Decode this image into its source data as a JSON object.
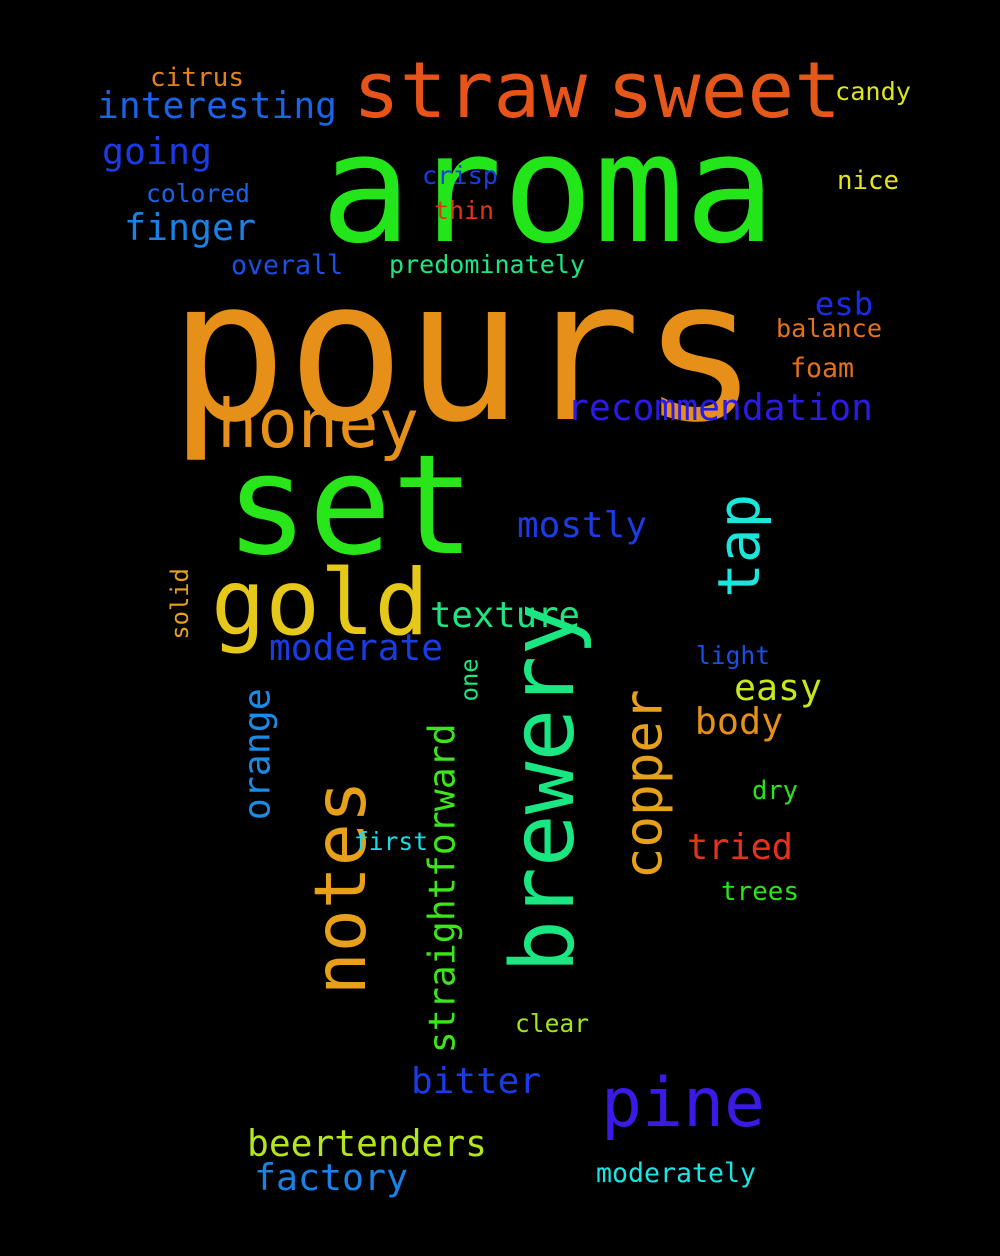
{
  "words": [
    {
      "text": "aroma",
      "color": "#22e61a"
    },
    {
      "text": "pours",
      "color": "#e6901a"
    },
    {
      "text": "brewery",
      "color": "#1ae682"
    },
    {
      "text": "notes",
      "color": "#e6a01a"
    },
    {
      "text": "copper",
      "color": "#e6a01a"
    },
    {
      "text": "set",
      "color": "#28e61a"
    },
    {
      "text": "tap",
      "color": "#1ae6dc"
    },
    {
      "text": "straw",
      "color": "#e6541a"
    },
    {
      "text": "sweet",
      "color": "#e6581a"
    },
    {
      "text": "gold",
      "color": "#e6c81a"
    },
    {
      "text": "honey",
      "color": "#e6901a"
    },
    {
      "text": "pine",
      "color": "#3c1ae6"
    },
    {
      "text": "interesting",
      "color": "#1a64e6"
    },
    {
      "text": "recommendation",
      "color": "#2c1ae6"
    },
    {
      "text": "going",
      "color": "#1a3ce6"
    },
    {
      "text": "finger",
      "color": "#1a82e6"
    },
    {
      "text": "mostly",
      "color": "#1a3ce6"
    },
    {
      "text": "texture",
      "color": "#1ae682"
    },
    {
      "text": "moderate",
      "color": "#1a3ce6"
    },
    {
      "text": "esb",
      "color": "#1a2ce6"
    },
    {
      "text": "orange",
      "color": "#1a8ce6"
    },
    {
      "text": "straightforward",
      "color": "#3ce61a"
    },
    {
      "text": "body",
      "color": "#e6901a"
    },
    {
      "text": "easy",
      "color": "#c8e61a"
    },
    {
      "text": "tried",
      "color": "#e6321a"
    },
    {
      "text": "bitter",
      "color": "#1a3ce6"
    },
    {
      "text": "beertenders",
      "color": "#b4e61a"
    },
    {
      "text": "factory",
      "color": "#1a82e6"
    },
    {
      "text": "citrus",
      "color": "#e6821a"
    },
    {
      "text": "candy",
      "color": "#dce61a"
    },
    {
      "text": "colored",
      "color": "#1a64e6"
    },
    {
      "text": "crisp",
      "color": "#1a3ce6"
    },
    {
      "text": "nice",
      "color": "#e6e61a"
    },
    {
      "text": "thin",
      "color": "#e6321a"
    },
    {
      "text": "overall",
      "color": "#1a50e6"
    },
    {
      "text": "predominately",
      "color": "#1ae682"
    },
    {
      "text": "balance",
      "color": "#e6721a"
    },
    {
      "text": "foam",
      "color": "#e6721a"
    },
    {
      "text": "solid",
      "color": "#e6a01a"
    },
    {
      "text": "light",
      "color": "#1a50e6"
    },
    {
      "text": "one",
      "color": "#1ae682"
    },
    {
      "text": "dry",
      "color": "#28e61a"
    },
    {
      "text": "first",
      "color": "#1adce6"
    },
    {
      "text": "trees",
      "color": "#28e61a"
    },
    {
      "text": "clear",
      "color": "#a0e61a"
    },
    {
      "text": "moderately",
      "color": "#1ae6e6"
    }
  ]
}
